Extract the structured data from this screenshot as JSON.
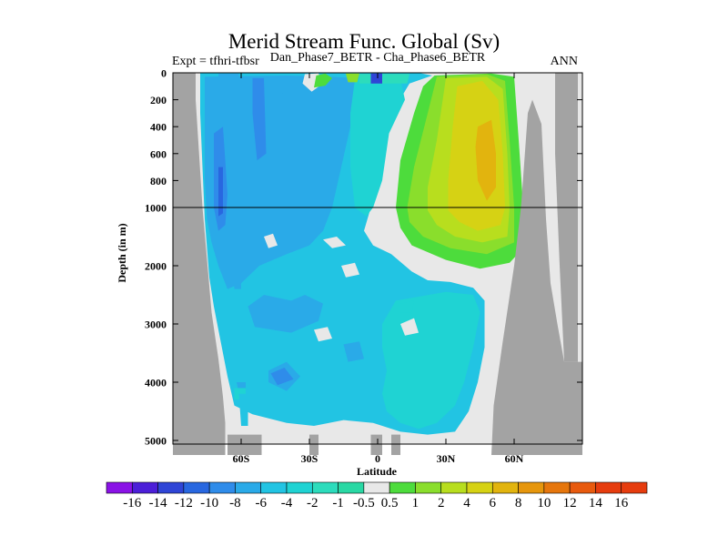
{
  "chart_data": {
    "type": "heatmap",
    "title": "Merid Stream Func. Global (Sv)",
    "subtitle_left": "Expt = tfhri-tfbsr",
    "subtitle_center": "Dan_Phase7_BETR - Cha_Phase6_BETR",
    "subtitle_right": "ANN",
    "xlabel": "Latitude",
    "ylabel": "Depth (in m)",
    "x_ticks": [
      {
        "lat": -60,
        "label": "60S"
      },
      {
        "lat": -30,
        "label": "30S"
      },
      {
        "lat": 0,
        "label": "0"
      },
      {
        "lat": 30,
        "label": "30N"
      },
      {
        "lat": 60,
        "label": "60N"
      }
    ],
    "y_ticks_upper": [
      {
        "depth": 0,
        "label": "0"
      },
      {
        "depth": 200,
        "label": "200"
      },
      {
        "depth": 400,
        "label": "400"
      },
      {
        "depth": 600,
        "label": "600"
      },
      {
        "depth": 800,
        "label": "800"
      },
      {
        "depth": 1000,
        "label": "1000"
      }
    ],
    "y_ticks_lower": [
      {
        "depth": 2000,
        "label": "2000"
      },
      {
        "depth": 3000,
        "label": "3000"
      },
      {
        "depth": 4000,
        "label": "4000"
      },
      {
        "depth": 5000,
        "label": "5000"
      }
    ],
    "xlim": [
      -90,
      90
    ],
    "ylim_upper": [
      0,
      1000
    ],
    "ylim_lower": [
      1000,
      5250
    ],
    "colorbar": {
      "labels": [
        "-16",
        "-14",
        "-12",
        "-10",
        "-8",
        "-6",
        "-4",
        "-2",
        "-1",
        "-0.5",
        "0.5",
        "1",
        "2",
        "4",
        "6",
        "8",
        "10",
        "12",
        "14",
        "16"
      ],
      "colors": [
        "#8a12e6",
        "#4c1fd8",
        "#2f45d6",
        "#2867e0",
        "#2f8cea",
        "#2aaae8",
        "#22c4e3",
        "#1fd3d3",
        "#2cdcbc",
        "#29d8a4",
        "#e8e8e8",
        "#4ddc3c",
        "#8ade2c",
        "#b8de1e",
        "#d6d214",
        "#e2b40e",
        "#e6960c",
        "#e6760c",
        "#e85a0e",
        "#e63c0e"
      ]
    },
    "land_color": "#a3a3a3",
    "nodata_color": "#e8e8e8",
    "contour_regions": [
      {
        "level": "-6",
        "points": [
          [
            -70,
            5
          ],
          [
            -61,
            5
          ],
          [
            -60,
            500
          ],
          [
            -61,
            1000
          ],
          [
            -60,
            2400
          ],
          [
            -63,
            2400
          ],
          [
            -64,
            1200
          ],
          [
            -66,
            700
          ],
          [
            -70,
            400
          ]
        ]
      },
      {
        "level": "-8",
        "points": [
          [
            -72,
            450
          ],
          [
            -68,
            400
          ],
          [
            -66,
            900
          ],
          [
            -67,
            1300
          ],
          [
            -70,
            1400
          ],
          [
            -72,
            1000
          ]
        ]
      },
      {
        "level": "-8",
        "points": [
          [
            -55,
            40
          ],
          [
            -50,
            40
          ],
          [
            -49,
            600
          ],
          [
            -53,
            650
          ],
          [
            -55,
            300
          ]
        ]
      },
      {
        "level": "-10",
        "points": [
          [
            -70,
            700
          ],
          [
            -68,
            700
          ],
          [
            -68,
            1100
          ],
          [
            -70,
            1150
          ]
        ]
      },
      {
        "level": "-6",
        "points": [
          [
            -42,
            150
          ],
          [
            -36,
            130
          ],
          [
            -35,
            500
          ],
          [
            -40,
            600
          ]
        ]
      },
      {
        "level": "-6",
        "points": [
          [
            -57,
            2700
          ],
          [
            -50,
            2500
          ],
          [
            -38,
            2600
          ],
          [
            -32,
            2500
          ],
          [
            -24,
            2650
          ],
          [
            -26,
            2950
          ],
          [
            -38,
            3150
          ],
          [
            -54,
            3050
          ]
        ]
      },
      {
        "level": "-6",
        "points": [
          [
            -48,
            3800
          ],
          [
            -40,
            3650
          ],
          [
            -34,
            3900
          ],
          [
            -40,
            4150
          ],
          [
            -48,
            4000
          ]
        ]
      },
      {
        "level": "-6",
        "points": [
          [
            -62,
            4000
          ],
          [
            -58,
            4000
          ],
          [
            -58,
            4200
          ],
          [
            -61,
            4200
          ]
        ]
      },
      {
        "level": "-6",
        "points": [
          [
            -15,
            3350
          ],
          [
            -8,
            3300
          ],
          [
            -6,
            3600
          ],
          [
            -13,
            3650
          ]
        ]
      },
      {
        "level": "-8",
        "points": [
          [
            -47,
            3850
          ],
          [
            -41,
            3750
          ],
          [
            -37,
            3950
          ],
          [
            -44,
            4050
          ]
        ]
      },
      {
        "level": "-2",
        "points": [
          [
            10,
            2650
          ],
          [
            16,
            2600
          ],
          [
            15,
            2800
          ],
          [
            10,
            2800
          ]
        ]
      },
      {
        "level": "-2",
        "points": [
          [
            -63,
            4100
          ],
          [
            -58,
            4100
          ],
          [
            -58,
            4300
          ],
          [
            -63,
            4300
          ]
        ]
      },
      {
        "level": "-4",
        "points": [
          [
            -61,
            4200
          ],
          [
            -57,
            4200
          ],
          [
            -57,
            4750
          ],
          [
            -60,
            4750
          ]
        ]
      },
      {
        "level": "0.5",
        "points": [
          [
            -32,
            10
          ],
          [
            -26,
            4
          ],
          [
            -24,
            80
          ],
          [
            -29,
            140
          ],
          [
            -33,
            80
          ]
        ]
      },
      {
        "level": "1",
        "points": [
          [
            -27,
            20
          ],
          [
            -23,
            5
          ],
          [
            -20,
            40
          ],
          [
            -23,
            95
          ],
          [
            -28,
            110
          ]
        ]
      },
      {
        "level": "2",
        "points": [
          [
            -14,
            5
          ],
          [
            -8,
            5
          ],
          [
            -9,
            70
          ],
          [
            -13,
            70
          ]
        ]
      },
      {
        "level": "-1",
        "points": [
          [
            -8,
            8
          ],
          [
            14,
            8
          ],
          [
            13,
            80
          ],
          [
            -8,
            80
          ]
        ]
      },
      {
        "level": "-16",
        "points": [
          [
            -2,
            10
          ],
          [
            1,
            10
          ],
          [
            1,
            65
          ],
          [
            -2,
            65
          ]
        ]
      },
      {
        "level": "-12",
        "points": [
          [
            -3,
            5
          ],
          [
            2,
            5
          ],
          [
            2,
            80
          ],
          [
            -3,
            80
          ]
        ]
      },
      {
        "level": "1",
        "points": [
          [
            25,
            20
          ],
          [
            50,
            5
          ],
          [
            60,
            30
          ],
          [
            62,
            500
          ],
          [
            64,
            1000
          ],
          [
            64,
            1700
          ],
          [
            58,
            1950
          ],
          [
            45,
            2050
          ],
          [
            30,
            1900
          ],
          [
            15,
            1650
          ],
          [
            10,
            1350
          ],
          [
            8,
            1000
          ],
          [
            10,
            650
          ],
          [
            16,
            300
          ],
          [
            20,
            100
          ]
        ]
      },
      {
        "level": "2",
        "points": [
          [
            26,
            30
          ],
          [
            48,
            10
          ],
          [
            56,
            60
          ],
          [
            58,
            500
          ],
          [
            60,
            1000
          ],
          [
            60,
            1600
          ],
          [
            48,
            1800
          ],
          [
            32,
            1700
          ],
          [
            20,
            1500
          ],
          [
            14,
            1250
          ],
          [
            13,
            1000
          ],
          [
            16,
            700
          ],
          [
            22,
            300
          ]
        ]
      },
      {
        "level": "4",
        "points": [
          [
            30,
            40
          ],
          [
            48,
            30
          ],
          [
            55,
            120
          ],
          [
            57,
            600
          ],
          [
            58,
            1000
          ],
          [
            57,
            1500
          ],
          [
            46,
            1600
          ],
          [
            34,
            1500
          ],
          [
            26,
            1300
          ],
          [
            22,
            1050
          ],
          [
            22,
            850
          ],
          [
            26,
            500
          ]
        ]
      },
      {
        "level": "6",
        "points": [
          [
            35,
            100
          ],
          [
            46,
            60
          ],
          [
            53,
            200
          ],
          [
            55,
            600
          ],
          [
            56,
            1000
          ],
          [
            54,
            1300
          ],
          [
            44,
            1400
          ],
          [
            36,
            1250
          ],
          [
            31,
            1050
          ],
          [
            31,
            800
          ],
          [
            33,
            400
          ]
        ]
      },
      {
        "level": "8",
        "points": [
          [
            44,
            400
          ],
          [
            50,
            350
          ],
          [
            52,
            600
          ],
          [
            52,
            850
          ],
          [
            48,
            950
          ],
          [
            44,
            800
          ],
          [
            43,
            550
          ]
        ]
      }
    ]
  }
}
